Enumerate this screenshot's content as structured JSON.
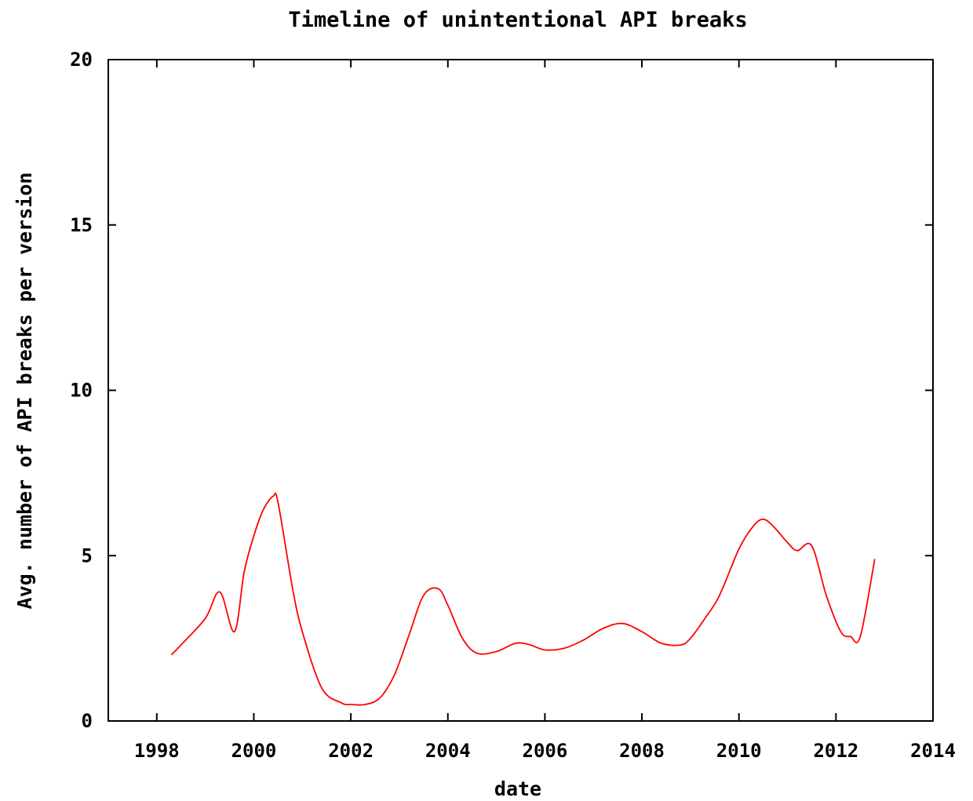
{
  "chart_data": {
    "type": "line",
    "title": "Timeline of unintentional API breaks",
    "xlabel": "date",
    "ylabel": "Avg. number of API breaks per version",
    "xlim": [
      1997,
      2014
    ],
    "ylim": [
      0,
      20
    ],
    "x_ticks": [
      1998,
      2000,
      2002,
      2004,
      2006,
      2008,
      2010,
      2012,
      2014
    ],
    "x_tick_labels": [
      "1998",
      "2000",
      "2002",
      "2004",
      "2006",
      "2008",
      "2010",
      "2012",
      "2014"
    ],
    "y_ticks": [
      0,
      5,
      10,
      15,
      20
    ],
    "y_tick_labels": [
      "0",
      "5",
      "10",
      "15",
      "20"
    ],
    "grid": false,
    "legend": "none",
    "series": [
      {
        "color": "#ff0000",
        "x": [
          1998.3,
          1998.5,
          1999.0,
          1999.3,
          1999.6,
          1999.8,
          2000.0,
          2000.2,
          2000.4,
          2000.5,
          2000.8,
          2001.0,
          2001.4,
          2001.8,
          2002.0,
          2002.3,
          2002.6,
          2002.9,
          2003.2,
          2003.5,
          2003.8,
          2004.0,
          2004.3,
          2004.6,
          2005.0,
          2005.4,
          2005.7,
          2006.0,
          2006.4,
          2006.8,
          2007.2,
          2007.6,
          2008.0,
          2008.4,
          2008.8,
          2009.0,
          2009.3,
          2009.6,
          2010.0,
          2010.3,
          2010.5,
          2010.7,
          2011.0,
          2011.2,
          2011.5,
          2011.8,
          2012.1,
          2012.3,
          2012.5,
          2012.8
        ],
        "y": [
          2.0,
          2.3,
          3.1,
          3.9,
          2.7,
          4.5,
          5.6,
          6.4,
          6.8,
          6.6,
          4.0,
          2.7,
          1.0,
          0.55,
          0.5,
          0.5,
          0.7,
          1.4,
          2.6,
          3.8,
          4.0,
          3.5,
          2.5,
          2.05,
          2.1,
          2.35,
          2.3,
          2.15,
          2.2,
          2.45,
          2.8,
          2.95,
          2.7,
          2.35,
          2.3,
          2.5,
          3.1,
          3.8,
          5.2,
          5.9,
          6.1,
          5.9,
          5.4,
          5.15,
          5.3,
          3.8,
          2.7,
          2.55,
          2.55,
          4.9
        ]
      }
    ]
  }
}
